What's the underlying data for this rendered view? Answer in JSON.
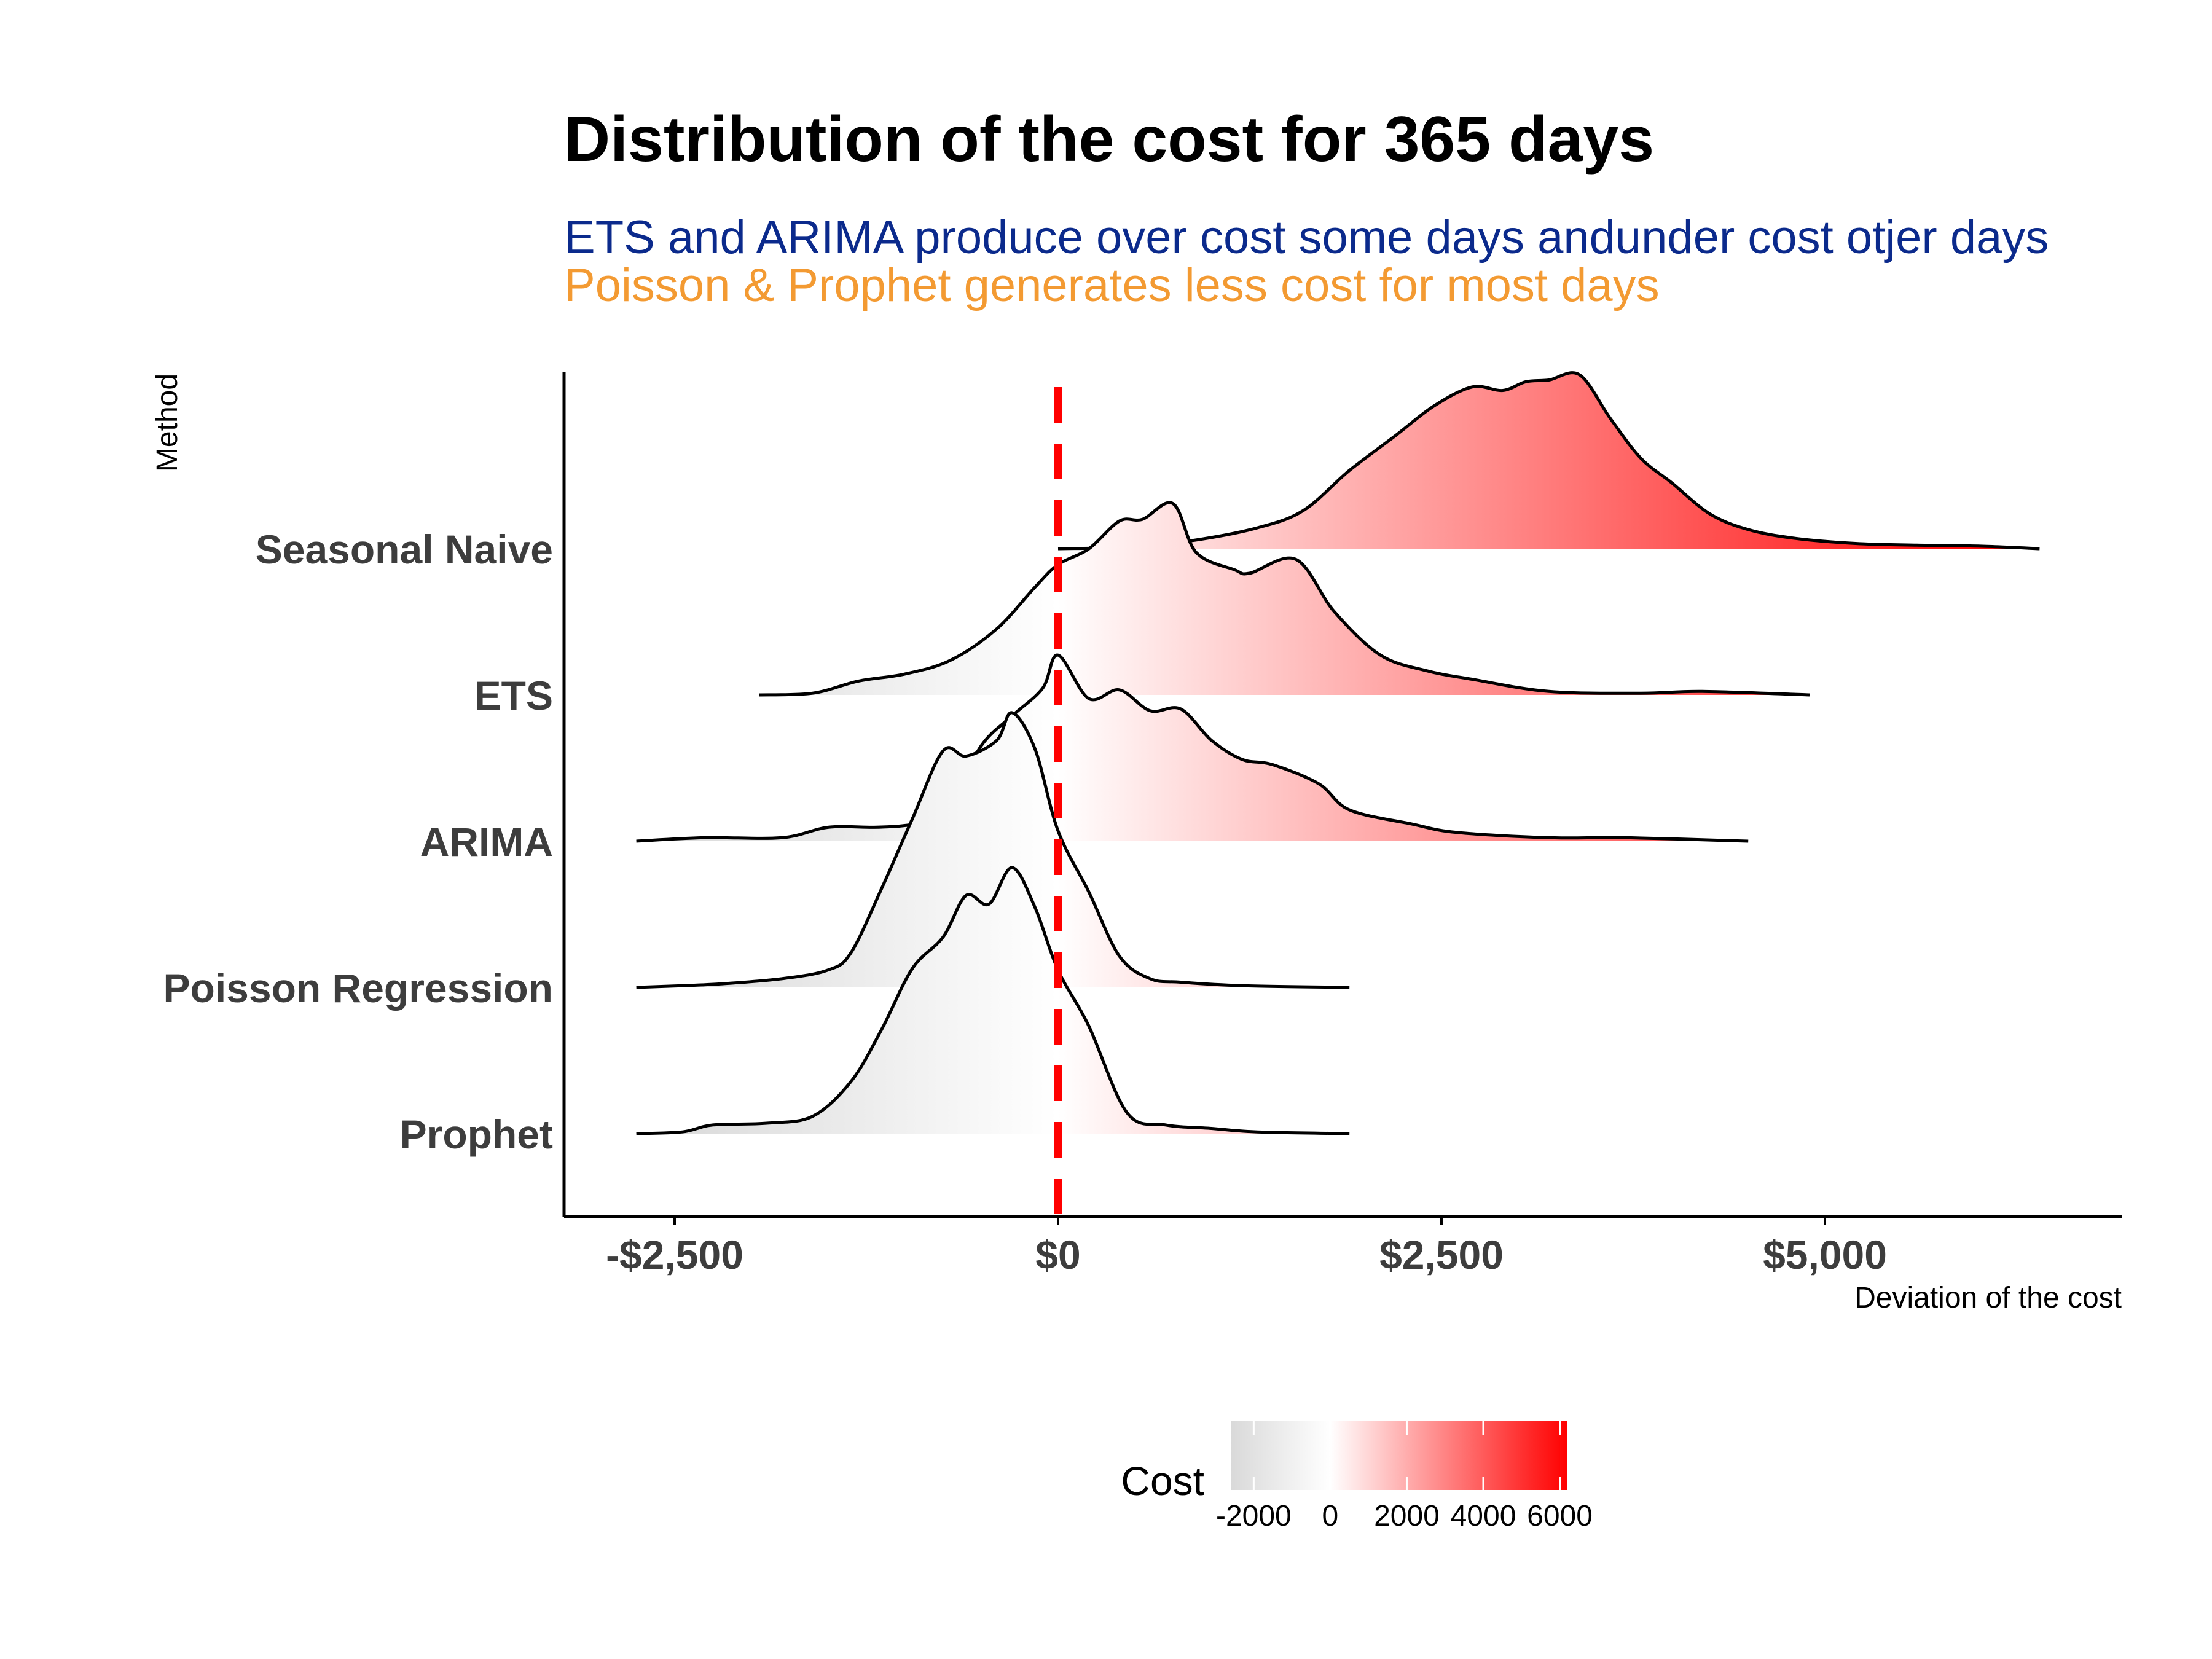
{
  "title": "Distribution of the cost for 365 days",
  "subtitle_lines": [
    {
      "text": "ETS and ARIMA produce over cost some days andunder cost otjer days",
      "color": "#0b2a8c"
    },
    {
      "text": "Poisson & Prophet generates less cost for most days",
      "color": "#f39a32"
    }
  ],
  "colors": {
    "reference_line": "#ff0000",
    "gradient_low": "#d9d9d9",
    "gradient_mid": "#ffffff",
    "gradient_high": "#ff0000",
    "axis": "#000000"
  },
  "chart_data": {
    "type": "ridgeline",
    "xlabel": "Deviation of the cost",
    "ylabel": "Method",
    "x_range": [
      -3200,
      7000
    ],
    "x_ticks": [
      {
        "value": -2500,
        "label": "-$2,500"
      },
      {
        "value": 0,
        "label": "$0"
      },
      {
        "value": 2500,
        "label": "$2,500"
      },
      {
        "value": 5000,
        "label": "$5,000"
      }
    ],
    "reference_line": {
      "x": 0,
      "style": "dashed"
    },
    "fill_scale": {
      "title": "Cost",
      "range": [
        -2600,
        6200
      ],
      "ticks": [
        {
          "value": -2000,
          "label": "-2000"
        },
        {
          "value": 0,
          "label": "0"
        },
        {
          "value": 2000,
          "label": "2000"
        },
        {
          "value": 4000,
          "label": "4000"
        },
        {
          "value": 6000,
          "label": "6000"
        }
      ]
    },
    "series": [
      {
        "name": "Seasonal Naive",
        "points": [
          [
            0,
            0.0
          ],
          [
            500,
            0.01
          ],
          [
            900,
            0.05
          ],
          [
            1300,
            0.12
          ],
          [
            1600,
            0.22
          ],
          [
            1900,
            0.45
          ],
          [
            2200,
            0.65
          ],
          [
            2450,
            0.82
          ],
          [
            2700,
            0.93
          ],
          [
            2900,
            0.91
          ],
          [
            3050,
            0.96
          ],
          [
            3200,
            0.97
          ],
          [
            3400,
            1.0
          ],
          [
            3600,
            0.75
          ],
          [
            3800,
            0.52
          ],
          [
            4000,
            0.38
          ],
          [
            4250,
            0.2
          ],
          [
            4500,
            0.11
          ],
          [
            4800,
            0.06
          ],
          [
            5200,
            0.03
          ],
          [
            5600,
            0.02
          ],
          [
            6000,
            0.015
          ],
          [
            6400,
            0.0
          ]
        ]
      },
      {
        "name": "ETS",
        "points": [
          [
            -1950,
            0.0
          ],
          [
            -1600,
            0.01
          ],
          [
            -1300,
            0.08
          ],
          [
            -1000,
            0.12
          ],
          [
            -700,
            0.2
          ],
          [
            -400,
            0.38
          ],
          [
            -150,
            0.62
          ],
          [
            0,
            0.75
          ],
          [
            200,
            0.84
          ],
          [
            400,
            1.0
          ],
          [
            550,
            1.01
          ],
          [
            750,
            1.1
          ],
          [
            900,
            0.82
          ],
          [
            1150,
            0.72
          ],
          [
            1250,
            0.7
          ],
          [
            1550,
            0.78
          ],
          [
            1800,
            0.48
          ],
          [
            2100,
            0.23
          ],
          [
            2400,
            0.14
          ],
          [
            2700,
            0.09
          ],
          [
            3200,
            0.02
          ],
          [
            3800,
            0.01
          ],
          [
            4200,
            0.02
          ],
          [
            4900,
            0.0
          ]
        ]
      },
      {
        "name": "ARIMA",
        "points": [
          [
            -2750,
            0.0
          ],
          [
            -2300,
            0.02
          ],
          [
            -1800,
            0.02
          ],
          [
            -1500,
            0.08
          ],
          [
            -1200,
            0.08
          ],
          [
            -1000,
            0.09
          ],
          [
            -850,
            0.12
          ],
          [
            -700,
            0.22
          ],
          [
            -500,
            0.55
          ],
          [
            -300,
            0.72
          ],
          [
            -100,
            0.88
          ],
          [
            0,
            1.07
          ],
          [
            200,
            0.82
          ],
          [
            400,
            0.87
          ],
          [
            600,
            0.75
          ],
          [
            800,
            0.76
          ],
          [
            1000,
            0.58
          ],
          [
            1200,
            0.47
          ],
          [
            1400,
            0.44
          ],
          [
            1700,
            0.33
          ],
          [
            1900,
            0.18
          ],
          [
            2300,
            0.1
          ],
          [
            2600,
            0.05
          ],
          [
            3200,
            0.02
          ],
          [
            3700,
            0.02
          ],
          [
            4500,
            0.0
          ]
        ]
      },
      {
        "name": "Poisson Regression",
        "points": [
          [
            -2750,
            0.0
          ],
          [
            -2450,
            0.01
          ],
          [
            -2200,
            0.02
          ],
          [
            -1800,
            0.05
          ],
          [
            -1500,
            0.1
          ],
          [
            -1350,
            0.2
          ],
          [
            -1150,
            0.57
          ],
          [
            -950,
            0.97
          ],
          [
            -750,
            1.36
          ],
          [
            -600,
            1.33
          ],
          [
            -400,
            1.42
          ],
          [
            -300,
            1.58
          ],
          [
            -150,
            1.37
          ],
          [
            0,
            0.9
          ],
          [
            200,
            0.55
          ],
          [
            400,
            0.18
          ],
          [
            600,
            0.05
          ],
          [
            800,
            0.03
          ],
          [
            1200,
            0.01
          ],
          [
            1900,
            0.0
          ]
        ]
      },
      {
        "name": "Prophet",
        "points": [
          [
            -2750,
            0.0
          ],
          [
            -2450,
            0.01
          ],
          [
            -2250,
            0.05
          ],
          [
            -1900,
            0.06
          ],
          [
            -1600,
            0.1
          ],
          [
            -1350,
            0.3
          ],
          [
            -1150,
            0.6
          ],
          [
            -950,
            0.95
          ],
          [
            -750,
            1.13
          ],
          [
            -600,
            1.37
          ],
          [
            -450,
            1.32
          ],
          [
            -300,
            1.53
          ],
          [
            -150,
            1.3
          ],
          [
            0,
            0.94
          ],
          [
            200,
            0.62
          ],
          [
            450,
            0.12
          ],
          [
            700,
            0.05
          ],
          [
            1000,
            0.03
          ],
          [
            1300,
            0.01
          ],
          [
            1900,
            0.0
          ]
        ]
      }
    ]
  }
}
